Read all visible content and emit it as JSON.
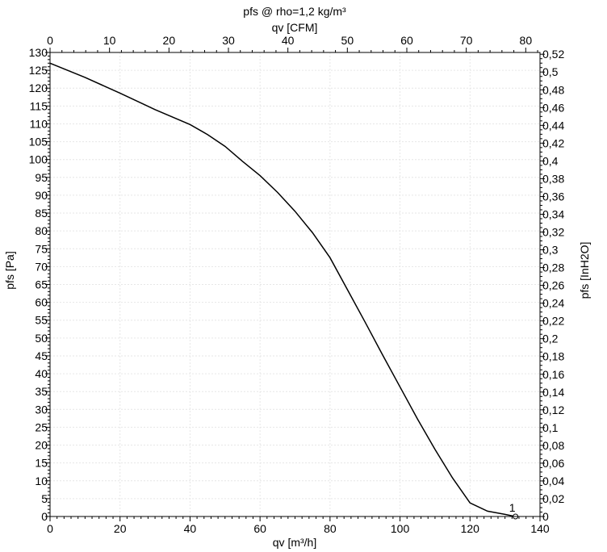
{
  "chart_data": {
    "type": "line",
    "title": "pfs @ rho=1,2 kg/m³",
    "xlabel": "qv [m³/h]",
    "ylabel": "pfs [Pa]",
    "x2label": "qv [CFM]",
    "y2label": "pfs [InH2O]",
    "xlim": [
      0,
      140
    ],
    "ylim": [
      0,
      130
    ],
    "x2lim": [
      0,
      82.4
    ],
    "y2lim": [
      0,
      0.522
    ],
    "x_ticks": [
      0,
      20,
      40,
      60,
      80,
      100,
      120,
      140
    ],
    "y_ticks": [
      0,
      5,
      10,
      15,
      20,
      25,
      30,
      35,
      40,
      45,
      50,
      55,
      60,
      65,
      70,
      75,
      80,
      85,
      90,
      95,
      100,
      105,
      110,
      115,
      120,
      125,
      130
    ],
    "x2_ticks": [
      0,
      10,
      20,
      30,
      40,
      50,
      60,
      70,
      80
    ],
    "y2_ticks": [
      "0",
      "0,02",
      "0,04",
      "0,06",
      "0,08",
      "0,1",
      "0,12",
      "0,14",
      "0,16",
      "0,18",
      "0,2",
      "0,22",
      "0,24",
      "0,26",
      "0,28",
      "0,3",
      "0,32",
      "0,34",
      "0,36",
      "0,38",
      "0,4",
      "0,42",
      "0,44",
      "0,46",
      "0,48",
      "0,5",
      "0,52"
    ],
    "grid": true,
    "series": [
      {
        "x": [
          0,
          10,
          20,
          30,
          40,
          45,
          50,
          55,
          60,
          65,
          70,
          75,
          80,
          85,
          90,
          95,
          100,
          105,
          110,
          115,
          120,
          125,
          130,
          133
        ],
        "y": [
          127,
          123,
          118.6,
          114,
          109.8,
          107,
          103.7,
          99.5,
          95.5,
          90.8,
          85.5,
          79.5,
          72.5,
          63.5,
          54.5,
          45.3,
          36.3,
          27.3,
          18.8,
          10.8,
          3.8,
          1.5,
          0.6,
          0
        ]
      }
    ],
    "annotations": [
      {
        "label": "1",
        "x": 133,
        "y": 0
      }
    ]
  }
}
